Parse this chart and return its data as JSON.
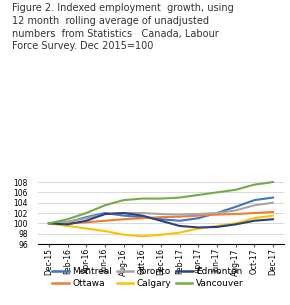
{
  "title_lines": [
    "Figure 2. Indexed employment  growth, using",
    "12 month  rolling average of unadjusted",
    "numbers  from Statistics   Canada, Labour",
    "Force Survey. Dec 2015=100"
  ],
  "x_labels": [
    "Dec-15",
    "Feb-16",
    "Apr-16",
    "Jun-16",
    "Aug-16",
    "Oct-16",
    "Dec-16",
    "Feb-17",
    "Apr-17",
    "Jun-17",
    "Aug-17",
    "Oct-17",
    "Dec-17"
  ],
  "series": {
    "Montreal": {
      "color": "#4472C4",
      "values": [
        100.0,
        100.2,
        101.2,
        102.0,
        101.5,
        101.2,
        100.8,
        100.5,
        101.0,
        102.0,
        103.2,
        104.5,
        105.0
      ]
    },
    "Ottawa": {
      "color": "#ED7D31",
      "values": [
        100.0,
        100.0,
        100.2,
        100.5,
        100.8,
        101.0,
        101.2,
        101.3,
        101.5,
        101.7,
        101.8,
        102.0,
        102.2
      ]
    },
    "Toronto": {
      "color": "#A5A5A5",
      "values": [
        100.0,
        100.3,
        101.0,
        101.8,
        102.0,
        102.0,
        101.8,
        101.7,
        101.8,
        102.0,
        102.5,
        103.5,
        104.0
      ]
    },
    "Calgary": {
      "color": "#FFC000",
      "values": [
        100.0,
        99.5,
        99.0,
        98.5,
        97.8,
        97.5,
        97.8,
        98.2,
        99.0,
        99.5,
        100.0,
        101.0,
        101.5
      ]
    },
    "Edmonton": {
      "color": "#264478",
      "values": [
        100.0,
        99.8,
        100.5,
        101.8,
        102.0,
        101.5,
        100.5,
        99.5,
        99.2,
        99.3,
        99.8,
        100.5,
        100.8
      ]
    },
    "Vancouver": {
      "color": "#70AD47",
      "values": [
        100.0,
        100.8,
        102.0,
        103.5,
        104.5,
        104.8,
        104.8,
        105.0,
        105.5,
        106.0,
        106.5,
        107.5,
        108.0
      ]
    }
  },
  "ylim": [
    96,
    109
  ],
  "yticks": [
    96,
    98,
    100,
    102,
    104,
    106,
    108
  ],
  "legend_order": [
    "Montreal",
    "Ottawa",
    "Toronto",
    "Calgary",
    "Edmonton",
    "Vancouver"
  ],
  "bg_color": "#FFFFFF",
  "grid_color": "#D9D9D9",
  "title_fontsize": 7.0,
  "tick_fontsize": 5.5,
  "legend_fontsize": 6.5
}
